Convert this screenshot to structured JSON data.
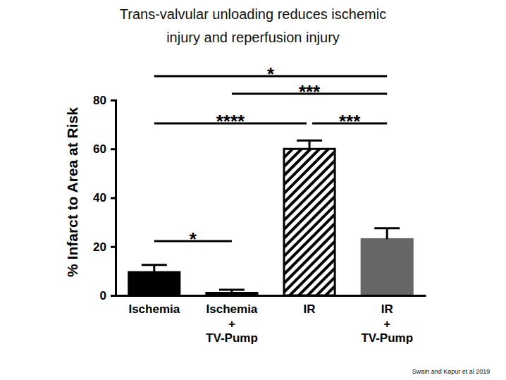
{
  "chart_data": {
    "type": "bar",
    "title": "Trans-valvular unloading reduces ischemic injury and reperfusion injury",
    "y_label": "% Infarct to Area at Risk",
    "categories": [
      "Ischemia",
      "Ischemia\n+\nTV-Pump",
      "IR",
      "IR\n+\nTV-Pump"
    ],
    "values": [
      9.5,
      1,
      60,
      23
    ],
    "errors": [
      3,
      1.3,
      3.5,
      4.5
    ],
    "colors": [
      "#000000",
      "#000000",
      "#000000",
      "#666666"
    ],
    "ylim": [
      0,
      80
    ],
    "yticks": [
      0,
      20,
      40,
      60,
      80
    ],
    "grid": false,
    "annotations": [
      {
        "text": "*",
        "between": [
          0,
          3
        ]
      },
      {
        "text": "***",
        "between": [
          1,
          3
        ]
      },
      {
        "text": "****",
        "between": [
          0,
          2
        ]
      },
      {
        "text": "***",
        "between": [
          2,
          3
        ]
      },
      {
        "text": "*",
        "between": [
          0,
          1
        ]
      }
    ],
    "source": "Swain and Kapur et al 2019"
  }
}
